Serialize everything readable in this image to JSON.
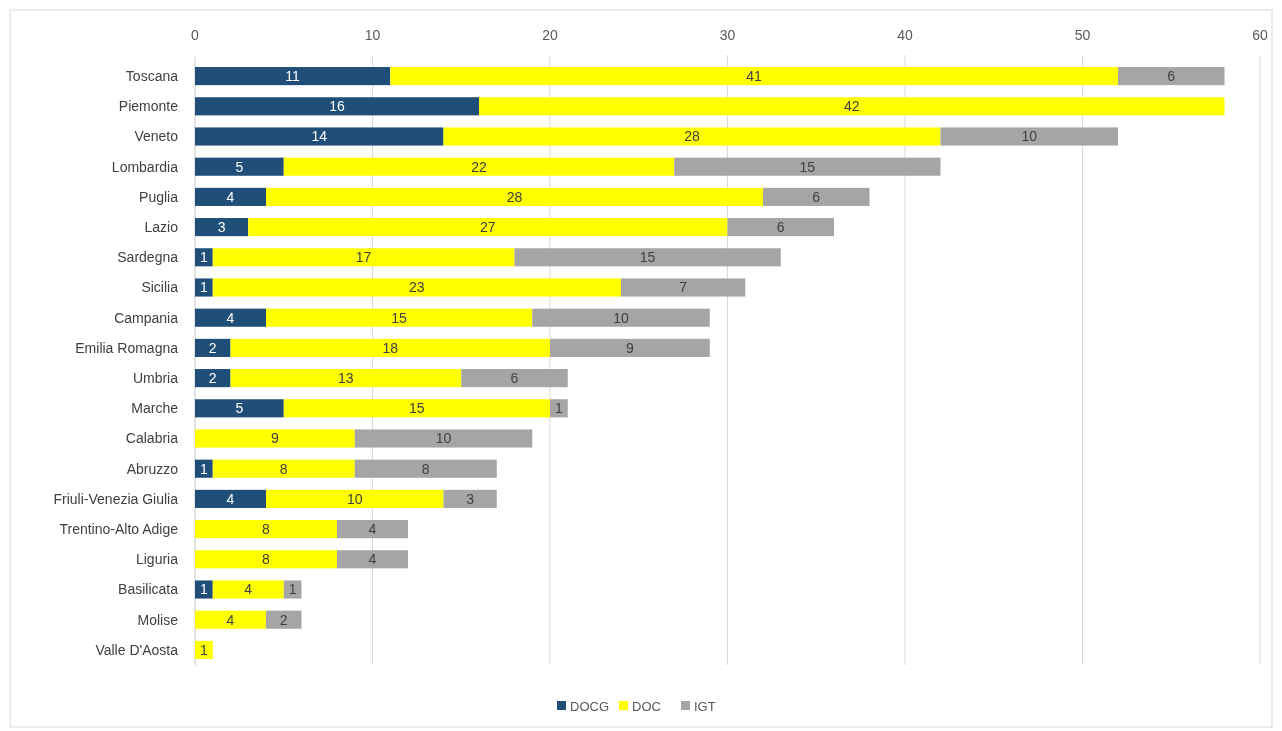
{
  "chart_data": {
    "type": "bar",
    "orientation": "horizontal",
    "stacked": true,
    "data_labels": true,
    "grid": "x",
    "legend": "bottom",
    "categories": [
      "Toscana",
      "Piemonte",
      "Veneto",
      "Lombardia",
      "Puglia",
      "Lazio",
      "Sardegna",
      "Sicilia",
      "Campania",
      "Emilia Romagna",
      "Umbria",
      "Marche",
      "Calabria",
      "Abruzzo",
      "Friuli-Venezia Giulia",
      "Trentino-Alto Adige",
      "Liguria",
      "Basilicata",
      "Molise",
      "Valle D'Aosta"
    ],
    "xlim": [
      0,
      60
    ],
    "xticks": [
      0,
      10,
      20,
      30,
      40,
      50,
      60
    ],
    "series": [
      {
        "name": "DOCG",
        "color": "#1f4e79",
        "values": [
          11,
          16,
          14,
          5,
          4,
          3,
          1,
          1,
          4,
          2,
          2,
          5,
          null,
          1,
          4,
          null,
          null,
          1,
          null,
          null
        ]
      },
      {
        "name": "DOC",
        "color": "#ffff00",
        "values": [
          41,
          42,
          28,
          22,
          28,
          27,
          17,
          23,
          15,
          18,
          13,
          15,
          9,
          8,
          10,
          8,
          8,
          4,
          4,
          1
        ]
      },
      {
        "name": "IGT",
        "color": "#a5a5a5",
        "values": [
          6,
          null,
          10,
          15,
          6,
          6,
          15,
          7,
          10,
          9,
          6,
          1,
          10,
          8,
          3,
          4,
          4,
          1,
          2,
          null
        ]
      }
    ]
  }
}
